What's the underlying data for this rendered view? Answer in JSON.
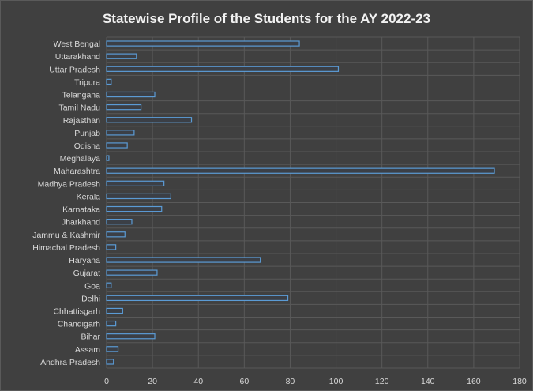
{
  "chart_data": {
    "type": "bar",
    "orientation": "horizontal",
    "title": "Statewise Profile of the Students for the AY 2022-23",
    "xlabel": "",
    "ylabel": "",
    "xlim": [
      0,
      180
    ],
    "x_ticks": [
      0,
      20,
      40,
      60,
      80,
      100,
      120,
      140,
      160,
      180
    ],
    "grid": true,
    "legend": "none",
    "categories": [
      "West Bengal",
      "Uttarakhand",
      "Uttar Pradesh",
      "Tripura",
      "Telangana",
      "Tamil Nadu",
      "Rajasthan",
      "Punjab",
      "Odisha",
      "Meghalaya",
      "Maharashtra",
      "Madhya Pradesh",
      "Kerala",
      "Karnataka",
      "Jharkhand",
      "Jammu & Kashmir",
      "Himachal Pradesh",
      "Haryana",
      "Gujarat",
      "Goa",
      "Delhi",
      "Chhattisgarh",
      "Chandigarh",
      "Bihar",
      "Assam",
      "Andhra Pradesh"
    ],
    "values": [
      84,
      13,
      101,
      2,
      21,
      15,
      37,
      12,
      9,
      1,
      169,
      25,
      28,
      24,
      11,
      8,
      4,
      67,
      22,
      2,
      79,
      7,
      4,
      21,
      5,
      3
    ],
    "colors": {
      "background": "#404040",
      "bar_fill": "#3b3f46",
      "bar_edge": "#5b9bd5",
      "grid": "#595959",
      "text": "#d9d9d9",
      "title": "#f2f2f2"
    }
  }
}
